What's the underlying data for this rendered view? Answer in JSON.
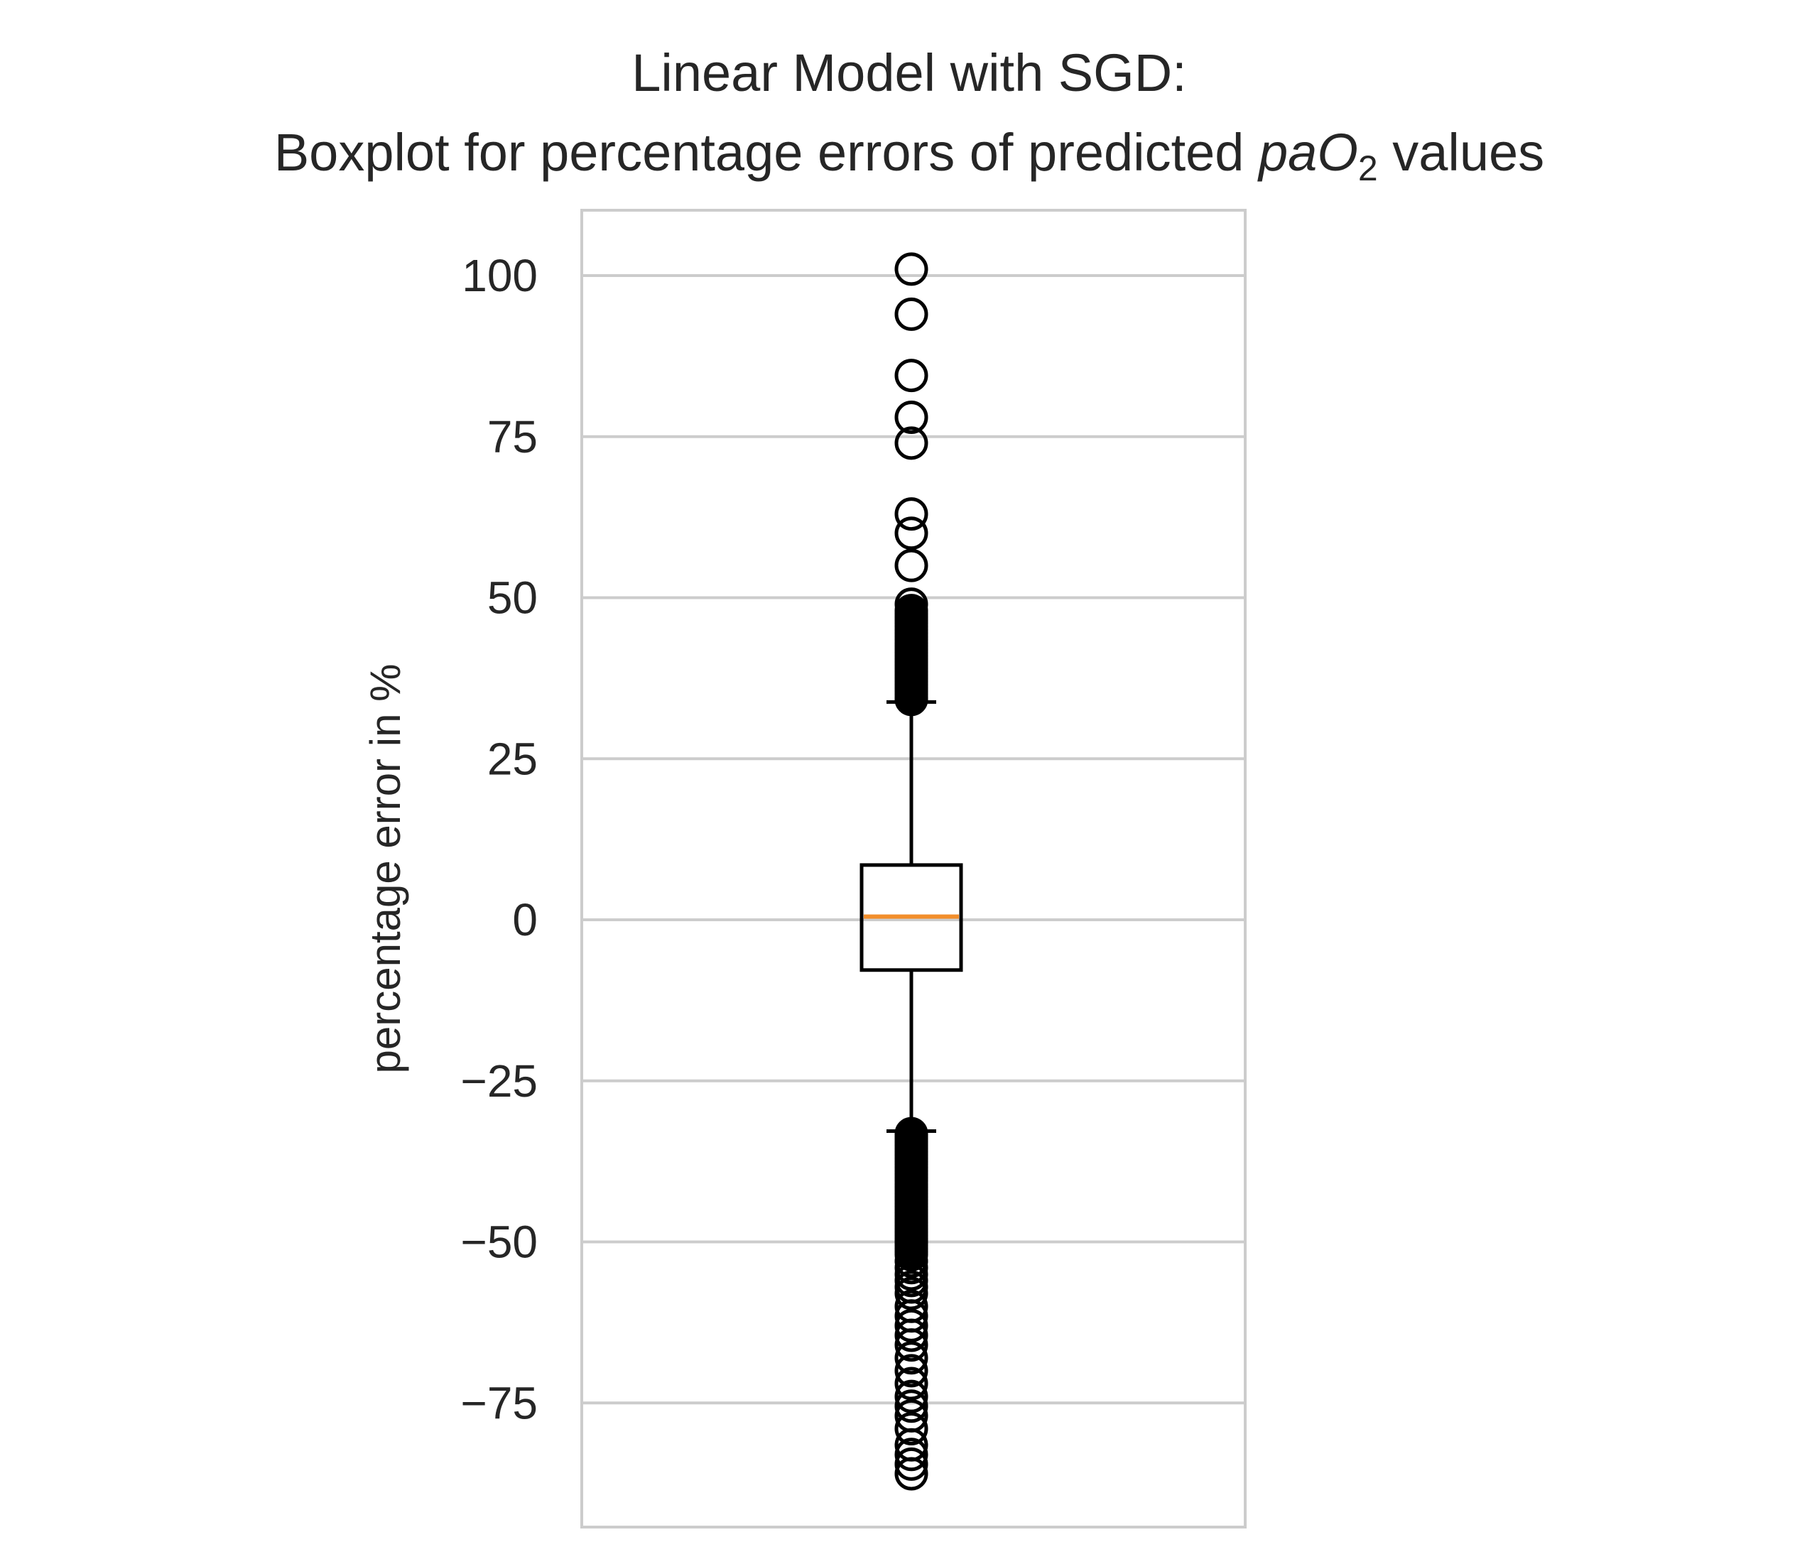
{
  "chart_data": {
    "type": "boxplot",
    "title_line1": "Linear Model with SGD:",
    "title_line2_prefix": "Boxplot for percentage errors of predicted ",
    "title_line2_math_main": "paO",
    "title_line2_math_sub": "2",
    "title_line2_suffix": " values",
    "xlabel": "",
    "ylabel": "percentage error in %",
    "ylim": [
      -94,
      110
    ],
    "yticks": [
      100,
      75,
      50,
      25,
      0,
      -25,
      -50,
      -75
    ],
    "ytick_labels": [
      "100",
      "75",
      "50",
      "25",
      "0",
      "−25",
      "−50",
      "−75"
    ],
    "grid": "horizontal",
    "box": {
      "q1": -7.8,
      "median": 0.5,
      "q3": 8.5,
      "whisker_low": -32.8,
      "whisker_high": 33.8
    },
    "outliers_high": [
      101,
      94,
      84.5,
      78,
      74,
      63,
      60,
      55,
      49,
      48,
      47.5,
      47,
      46.5,
      46,
      45.5,
      45,
      44.5,
      44,
      43.5,
      43,
      42.5,
      42,
      41.5,
      41,
      40.5,
      40,
      39.5,
      39,
      38.5,
      38,
      37.5,
      37,
      36.5,
      36,
      35.5,
      35,
      34.5,
      34.2
    ],
    "outliers_low": [
      -33.2,
      -33.6,
      -34,
      -34.5,
      -35,
      -35.5,
      -36,
      -36.5,
      -37,
      -37.5,
      -38,
      -38.5,
      -39,
      -39.5,
      -40,
      -40.5,
      -41,
      -41.5,
      -42,
      -42.5,
      -43,
      -43.5,
      -44,
      -44.5,
      -45,
      -45.5,
      -46,
      -46.5,
      -47,
      -47.5,
      -48,
      -48.5,
      -49,
      -49.5,
      -50,
      -50.5,
      -51,
      -51.5,
      -52,
      -53,
      -54,
      -55,
      -56,
      -57,
      -58,
      -60,
      -61.5,
      -63,
      -64.5,
      -66,
      -68,
      -70,
      -72,
      -74,
      -75.5,
      -77,
      -79,
      -81.5,
      -83,
      -84.5,
      -86
    ],
    "colors": {
      "median": "#f28e2b",
      "box": "#000000",
      "grid": "#cccccc",
      "spine": "#cccccc"
    }
  }
}
